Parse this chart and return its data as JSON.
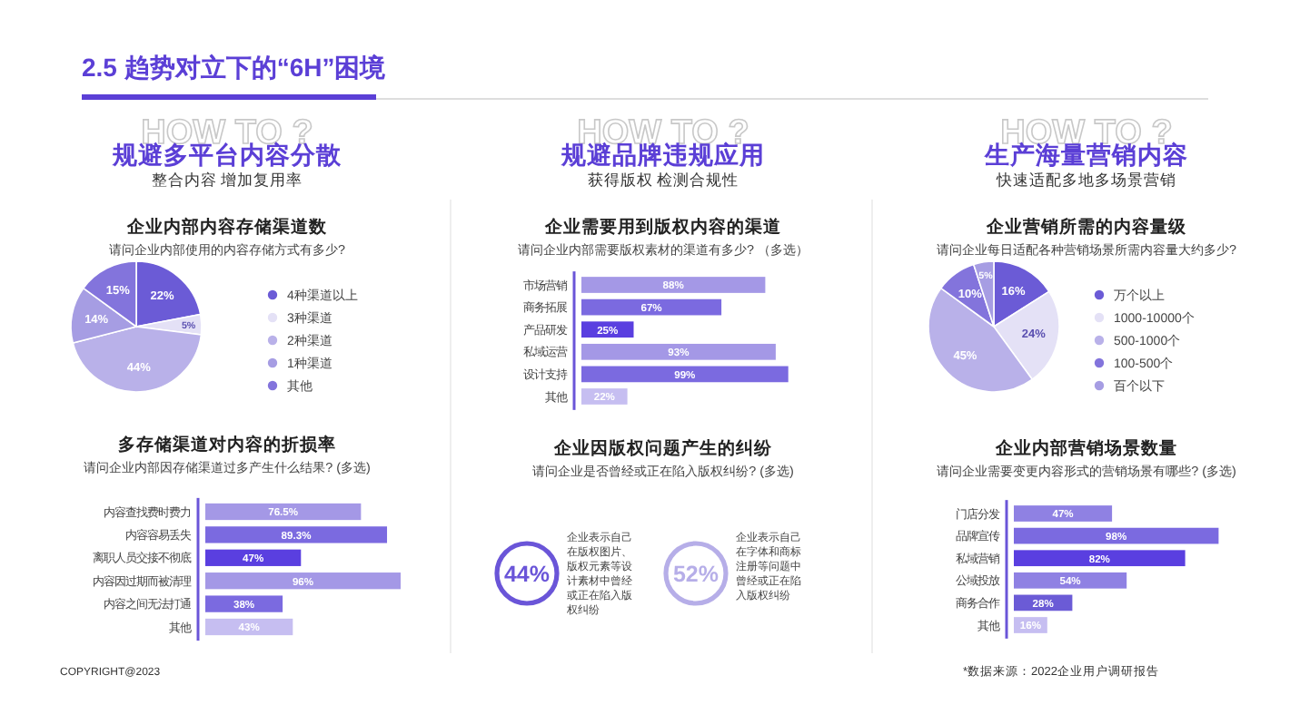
{
  "chart_data": [
    {
      "type": "other",
      "title": "2.5 趋势对立下的“6H”困境",
      "annotations": [
        "COPYRIGHT@2023",
        "*数据来源：2022企业用户调研报告"
      ]
    },
    {
      "type": "other",
      "title": "规避多平台内容分散",
      "subtitle": "整合内容 增加复用率",
      "annotations": [
        "HOW TO ?"
      ]
    },
    {
      "type": "pie",
      "title": "企业内部内容存储渠道数",
      "subtitle": "请问企业内部使用的内容存储方式有多少?",
      "categories": [
        "4种渠道以上",
        "3种渠道",
        "2种渠道",
        "1种渠道",
        "其他"
      ],
      "values": [
        22,
        5,
        44,
        14,
        15
      ],
      "value_labels": [
        "22%",
        "5%",
        "44%",
        "14%",
        "15%"
      ],
      "colors": [
        "#6b5bd6",
        "#e4e1f6",
        "#b9b1e9",
        "#a69de3",
        "#8374dc"
      ],
      "legend": "right"
    },
    {
      "type": "bar",
      "orientation": "horizontal",
      "title": "多存储渠道对内容的折损率",
      "subtitle": "请问企业内部因存储渠道过多产生什么结果? (多选)",
      "categories": [
        "内容查找费时费力",
        "内容容易丢失",
        "离职人员交接不彻底",
        "内容因过期而被清理",
        "内容之间无法打通",
        "其他"
      ],
      "values": [
        76.5,
        89.3,
        47,
        96,
        38,
        43
      ],
      "value_labels": [
        "76.5%",
        "89.3%",
        "47%",
        "96%",
        "38%",
        "43%"
      ],
      "colors": [
        "#a498e6",
        "#7b6ae0",
        "#5a3fe0",
        "#a498e6",
        "#7b6ae0",
        "#c6bef1"
      ]
    },
    {
      "type": "other",
      "title": "规避品牌违规应用",
      "subtitle": "获得版权 检测合规性",
      "annotations": [
        "HOW TO ?"
      ]
    },
    {
      "type": "bar",
      "orientation": "horizontal",
      "title": "企业需要用到版权内容的渠道",
      "subtitle": "请问企业内部需要版权素材的渠道有多少? （多选）",
      "categories": [
        "市场营销",
        "商务拓展",
        "产品研发",
        "私域运营",
        "设计支持",
        "其他"
      ],
      "values": [
        88,
        67,
        25,
        93,
        99,
        22
      ],
      "value_labels": [
        "88%",
        "67%",
        "25%",
        "93%",
        "99%",
        "22%"
      ],
      "colors": [
        "#a498e6",
        "#7b6ae0",
        "#5a3fe0",
        "#a498e6",
        "#7b6ae0",
        "#c6bef1"
      ]
    },
    {
      "type": "other",
      "title": "企业因版权问题产生的纠纷",
      "subtitle": "请问企业是否曾经或正在陷入版权纠纷? (多选)",
      "categories": [
        "企业表示自己在版权图片、版权元素等设计素材中曾经或正在陷入版权纠纷",
        "企业表示自己在字体和商标注册等问题中曾经或正在陷入版权纠纷"
      ],
      "values": [
        44,
        52
      ],
      "value_labels": [
        "44%",
        "52%"
      ],
      "colors": [
        "#6a55d8",
        "#b6aee8"
      ]
    },
    {
      "type": "other",
      "title": "生产海量营销内容",
      "subtitle": "快速适配多地多场景营销",
      "annotations": [
        "HOW TO ?"
      ]
    },
    {
      "type": "pie",
      "title": "企业营销所需的内容量级",
      "subtitle": "请问企业每日适配各种营销场景所需内容量大约多少?",
      "categories": [
        "万个以上",
        "1000-10000个",
        "500-1000个",
        "100-500个",
        "百个以下"
      ],
      "values": [
        16,
        24,
        45,
        10,
        5
      ],
      "value_labels": [
        "16%",
        "24%",
        "45%",
        "10%",
        "5%"
      ],
      "colors": [
        "#6b5bd6",
        "#e4e1f6",
        "#b9b1e9",
        "#8374dc",
        "#a69de3"
      ],
      "legend": "right"
    },
    {
      "type": "bar",
      "orientation": "horizontal",
      "title": "企业内部营销场景数量",
      "subtitle": "请问企业需要变更内容形式的营销场景有哪些? (多选)",
      "categories": [
        "门店分发",
        "品牌宣传",
        "私域营销",
        "公域投放",
        "商务合作",
        "其他"
      ],
      "values": [
        47,
        98,
        82,
        54,
        28,
        16
      ],
      "value_labels": [
        "47%",
        "98%",
        "82%",
        "54%",
        "28%",
        "16%"
      ],
      "colors": [
        "#8f81e3",
        "#7b6ae0",
        "#5a3fe0",
        "#8f81e3",
        "#6b5bd6",
        "#c6bef1"
      ]
    }
  ]
}
